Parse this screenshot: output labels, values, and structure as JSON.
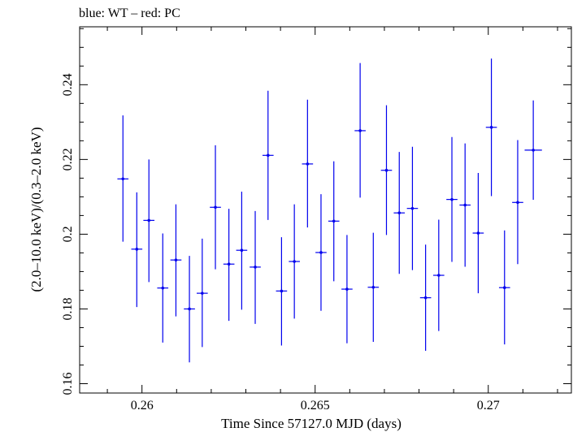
{
  "chart_data": {
    "type": "scatter",
    "title": "blue: WT – red: PC",
    "xlabel": "Time Since 57127.0 MJD (days)",
    "ylabel": "(2.0–10.0 keV)/(0.3–2.0 keV)",
    "xlim": [
      0.2582,
      0.2724
    ],
    "ylim": [
      0.1575,
      0.2555
    ],
    "xticks": [
      0.26,
      0.265,
      0.27
    ],
    "xtick_labels": [
      "0.26",
      "0.265",
      "0.27"
    ],
    "yticks": [
      0.16,
      0.18,
      0.2,
      0.22,
      0.24
    ],
    "ytick_labels": [
      "0.16",
      "0.18",
      "0.2",
      "0.22",
      "0.24"
    ],
    "grid": false,
    "series": [
      {
        "color": "#0000ee",
        "points": [
          {
            "x": 0.25945,
            "y": 0.2148,
            "xerr": 0.00016,
            "ylo": 0.198,
            "yhi": 0.2318
          },
          {
            "x": 0.25985,
            "y": 0.196,
            "xerr": 0.00016,
            "ylo": 0.1805,
            "yhi": 0.2112
          },
          {
            "x": 0.2602,
            "y": 0.2037,
            "xerr": 0.00016,
            "ylo": 0.1872,
            "yhi": 0.22
          },
          {
            "x": 0.2606,
            "y": 0.1856,
            "xerr": 0.00016,
            "ylo": 0.171,
            "yhi": 0.2002
          },
          {
            "x": 0.26098,
            "y": 0.1931,
            "xerr": 0.00016,
            "ylo": 0.178,
            "yhi": 0.208
          },
          {
            "x": 0.26137,
            "y": 0.18,
            "xerr": 0.00016,
            "ylo": 0.1657,
            "yhi": 0.1942
          },
          {
            "x": 0.26174,
            "y": 0.1842,
            "xerr": 0.00016,
            "ylo": 0.1698,
            "yhi": 0.1988
          },
          {
            "x": 0.26212,
            "y": 0.2072,
            "xerr": 0.00016,
            "ylo": 0.1906,
            "yhi": 0.2238
          },
          {
            "x": 0.26251,
            "y": 0.192,
            "xerr": 0.00016,
            "ylo": 0.1768,
            "yhi": 0.2068
          },
          {
            "x": 0.26288,
            "y": 0.1957,
            "xerr": 0.00016,
            "ylo": 0.1798,
            "yhi": 0.2114
          },
          {
            "x": 0.26327,
            "y": 0.1912,
            "xerr": 0.00016,
            "ylo": 0.176,
            "yhi": 0.2062
          },
          {
            "x": 0.26364,
            "y": 0.2211,
            "xerr": 0.00016,
            "ylo": 0.2038,
            "yhi": 0.2384
          },
          {
            "x": 0.26403,
            "y": 0.1848,
            "xerr": 0.00016,
            "ylo": 0.1702,
            "yhi": 0.1992
          },
          {
            "x": 0.2644,
            "y": 0.1927,
            "xerr": 0.00016,
            "ylo": 0.1774,
            "yhi": 0.208
          },
          {
            "x": 0.26478,
            "y": 0.2188,
            "xerr": 0.00016,
            "ylo": 0.2018,
            "yhi": 0.236
          },
          {
            "x": 0.26517,
            "y": 0.1951,
            "xerr": 0.00016,
            "ylo": 0.1795,
            "yhi": 0.2107
          },
          {
            "x": 0.26554,
            "y": 0.2035,
            "xerr": 0.00016,
            "ylo": 0.1874,
            "yhi": 0.2195
          },
          {
            "x": 0.26592,
            "y": 0.1853,
            "xerr": 0.00016,
            "ylo": 0.1708,
            "yhi": 0.1998
          },
          {
            "x": 0.2663,
            "y": 0.2277,
            "xerr": 0.00016,
            "ylo": 0.2098,
            "yhi": 0.2458
          },
          {
            "x": 0.26668,
            "y": 0.1858,
            "xerr": 0.00016,
            "ylo": 0.1712,
            "yhi": 0.2004
          },
          {
            "x": 0.26706,
            "y": 0.2171,
            "xerr": 0.00016,
            "ylo": 0.1998,
            "yhi": 0.2345
          },
          {
            "x": 0.26743,
            "y": 0.2057,
            "xerr": 0.00016,
            "ylo": 0.1894,
            "yhi": 0.222
          },
          {
            "x": 0.26781,
            "y": 0.2069,
            "xerr": 0.00016,
            "ylo": 0.1904,
            "yhi": 0.2234
          },
          {
            "x": 0.26819,
            "y": 0.183,
            "xerr": 0.00016,
            "ylo": 0.1688,
            "yhi": 0.1972
          },
          {
            "x": 0.26857,
            "y": 0.189,
            "xerr": 0.00016,
            "ylo": 0.1741,
            "yhi": 0.2039
          },
          {
            "x": 0.26895,
            "y": 0.2093,
            "xerr": 0.00016,
            "ylo": 0.1926,
            "yhi": 0.226
          },
          {
            "x": 0.26933,
            "y": 0.2078,
            "xerr": 0.00016,
            "ylo": 0.1913,
            "yhi": 0.2243
          },
          {
            "x": 0.26971,
            "y": 0.2003,
            "xerr": 0.00016,
            "ylo": 0.1842,
            "yhi": 0.2164
          },
          {
            "x": 0.27009,
            "y": 0.2286,
            "xerr": 0.00016,
            "ylo": 0.2102,
            "yhi": 0.247
          },
          {
            "x": 0.27047,
            "y": 0.1857,
            "xerr": 0.00016,
            "ylo": 0.1705,
            "yhi": 0.201
          },
          {
            "x": 0.27085,
            "y": 0.2085,
            "xerr": 0.00016,
            "ylo": 0.192,
            "yhi": 0.2252
          },
          {
            "x": 0.2713,
            "y": 0.2225,
            "xerr": 0.00025,
            "ylo": 0.2092,
            "yhi": 0.2358
          }
        ]
      }
    ]
  }
}
